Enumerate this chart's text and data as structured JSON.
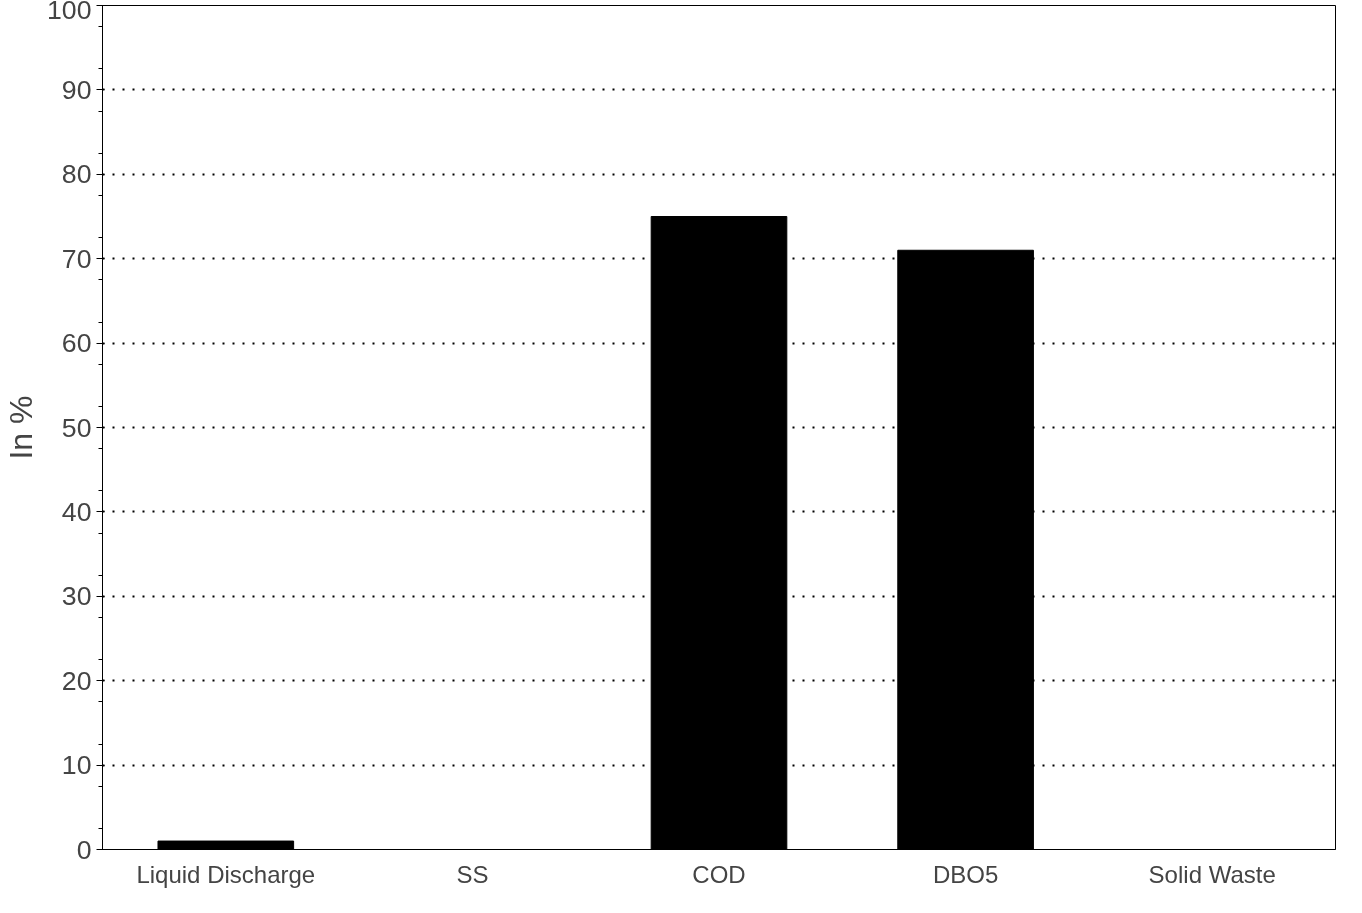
{
  "chart_data": {
    "type": "bar",
    "ylabel": "In %",
    "categories": [
      "Liquid Discharge",
      "SS",
      "COD",
      "DBO5",
      "Solid Waste"
    ],
    "values": [
      1,
      0,
      75,
      71,
      null
    ],
    "color": "#000000",
    "ylim": [
      0,
      100
    ],
    "yticks": [
      0,
      10,
      20,
      30,
      40,
      50,
      60,
      70,
      80,
      90,
      100
    ],
    "grid": "y",
    "line_style": "dotted"
  }
}
